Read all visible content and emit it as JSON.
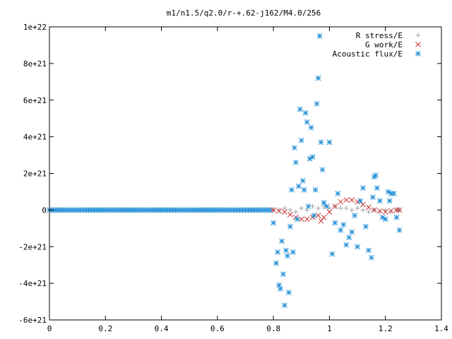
{
  "chart_data": {
    "type": "scatter",
    "title": "m1/n1.5/q2.0/r-+.62-j162/M4.0/256",
    "xlabel": "",
    "ylabel": "",
    "xlim": [
      0,
      1.4
    ],
    "ylim": [
      -6e+21,
      1e+22
    ],
    "x_ticks": [
      "0",
      "0.2",
      "0.4",
      "0.6",
      "0.8",
      "1",
      "1.2",
      "1.4"
    ],
    "y_ticks": [
      "-6e+21",
      "-4e+21",
      "-2e+21",
      "0",
      "2e+21",
      "4e+21",
      "6e+21",
      "8e+21",
      "1e+22"
    ],
    "grid": false,
    "legend_position": "top-right",
    "series": [
      {
        "name": "R stress/E",
        "color": "#a0a0a4",
        "marker": "plus",
        "points": [
          [
            0.8,
            0
          ],
          [
            0.82,
            0.0
          ],
          [
            0.84,
            1e+20
          ],
          [
            0.86,
            0.0
          ],
          [
            0.88,
            -1e+20
          ],
          [
            0.9,
            1e+20
          ],
          [
            0.92,
            0.0
          ],
          [
            0.94,
            2e+20
          ],
          [
            0.96,
            1e+20
          ],
          [
            0.98,
            2e+20
          ],
          [
            1.0,
            1e+20
          ],
          [
            1.02,
            2e+20
          ],
          [
            1.04,
            1e+20
          ],
          [
            1.06,
            1e+20
          ],
          [
            1.08,
            0.0
          ],
          [
            1.1,
            1e+20
          ],
          [
            1.12,
            0.0
          ],
          [
            1.14,
            -1e+20
          ],
          [
            1.16,
            0.0
          ],
          [
            1.18,
            -1e+20
          ],
          [
            1.2,
            0.0
          ],
          [
            1.22,
            -1e+20
          ],
          [
            1.24,
            0.0
          ],
          [
            1.25,
            0.0
          ]
        ]
      },
      {
        "name": "G work/E",
        "color": "#cc3333",
        "marker": "cross",
        "points": [
          [
            0.8,
            0.0
          ],
          [
            0.82,
            -5e+19
          ],
          [
            0.84,
            -1e+20
          ],
          [
            0.86,
            -2.5e+20
          ],
          [
            0.88,
            -4e+20
          ],
          [
            0.9,
            -5e+20
          ],
          [
            0.92,
            -5e+20
          ],
          [
            0.94,
            -4e+20
          ],
          [
            0.96,
            -3e+20
          ],
          [
            0.97,
            -6e+20
          ],
          [
            0.98,
            -4e+20
          ],
          [
            1.0,
            -1e+20
          ],
          [
            1.02,
            2e+20
          ],
          [
            1.04,
            4.5e+20
          ],
          [
            1.06,
            5.5e+20
          ],
          [
            1.08,
            5.5e+20
          ],
          [
            1.1,
            4.5e+20
          ],
          [
            1.12,
            3e+20
          ],
          [
            1.14,
            1.5e+20
          ],
          [
            1.16,
            0.0
          ],
          [
            1.18,
            -5e+19
          ],
          [
            1.2,
            -1e+20
          ],
          [
            1.22,
            -5e+19
          ],
          [
            1.24,
            0.0
          ],
          [
            1.25,
            0.0
          ]
        ]
      },
      {
        "name": "Acoustic flux/E",
        "color": "#1f8fd8",
        "marker": "star",
        "points": [
          [
            0.8,
            -7e+20
          ],
          [
            0.81,
            -2.9e+21
          ],
          [
            0.815,
            -2.3e+21
          ],
          [
            0.82,
            -4.1e+21
          ],
          [
            0.825,
            -4.3e+21
          ],
          [
            0.83,
            -1.7e+21
          ],
          [
            0.835,
            -3.5e+21
          ],
          [
            0.84,
            -5.2e+21
          ],
          [
            0.845,
            -2.2e+21
          ],
          [
            0.85,
            -2.5e+21
          ],
          [
            0.855,
            -4.5e+21
          ],
          [
            0.86,
            -9e+20
          ],
          [
            0.865,
            1.1e+21
          ],
          [
            0.87,
            -2.3e+21
          ],
          [
            0.875,
            3.4e+21
          ],
          [
            0.88,
            2.6e+21
          ],
          [
            0.885,
            -5e+20
          ],
          [
            0.89,
            1.3e+21
          ],
          [
            0.895,
            5.5e+21
          ],
          [
            0.9,
            3.8e+21
          ],
          [
            0.905,
            1.6e+21
          ],
          [
            0.91,
            1.1e+21
          ],
          [
            0.915,
            5.3e+21
          ],
          [
            0.92,
            4.8e+21
          ],
          [
            0.925,
            2e+20
          ],
          [
            0.93,
            2.8e+21
          ],
          [
            0.935,
            4.5e+21
          ],
          [
            0.94,
            2.9e+21
          ],
          [
            0.945,
            -3e+20
          ],
          [
            0.95,
            1.1e+21
          ],
          [
            0.955,
            5.8e+21
          ],
          [
            0.96,
            7.2e+21
          ],
          [
            0.965,
            9.5e+21
          ],
          [
            0.97,
            3.7e+21
          ],
          [
            0.975,
            2.2e+21
          ],
          [
            0.98,
            4e+20
          ],
          [
            0.99,
            2e+20
          ],
          [
            1.0,
            3.7e+21
          ],
          [
            1.01,
            -2.4e+21
          ],
          [
            1.02,
            -7e+20
          ],
          [
            1.03,
            9e+20
          ],
          [
            1.04,
            -1.1e+21
          ],
          [
            1.05,
            -8e+20
          ],
          [
            1.06,
            -1.9e+21
          ],
          [
            1.07,
            -1.5e+21
          ],
          [
            1.08,
            -1.2e+21
          ],
          [
            1.09,
            -3e+20
          ],
          [
            1.1,
            -2e+21
          ],
          [
            1.11,
            5e+20
          ],
          [
            1.12,
            1.2e+21
          ],
          [
            1.13,
            -9e+20
          ],
          [
            1.14,
            -2.2e+21
          ],
          [
            1.15,
            -2.6e+21
          ],
          [
            1.155,
            7e+20
          ],
          [
            1.16,
            1.8e+21
          ],
          [
            1.165,
            1.9e+21
          ],
          [
            1.17,
            1.2e+21
          ],
          [
            1.18,
            5e+20
          ],
          [
            1.19,
            -4e+20
          ],
          [
            1.2,
            -5e+20
          ],
          [
            1.21,
            1e+21
          ],
          [
            1.215,
            5e+20
          ],
          [
            1.22,
            9e+20
          ],
          [
            1.23,
            9e+20
          ],
          [
            1.24,
            -4e+20
          ],
          [
            1.25,
            -1.1e+21
          ]
        ]
      }
    ]
  }
}
